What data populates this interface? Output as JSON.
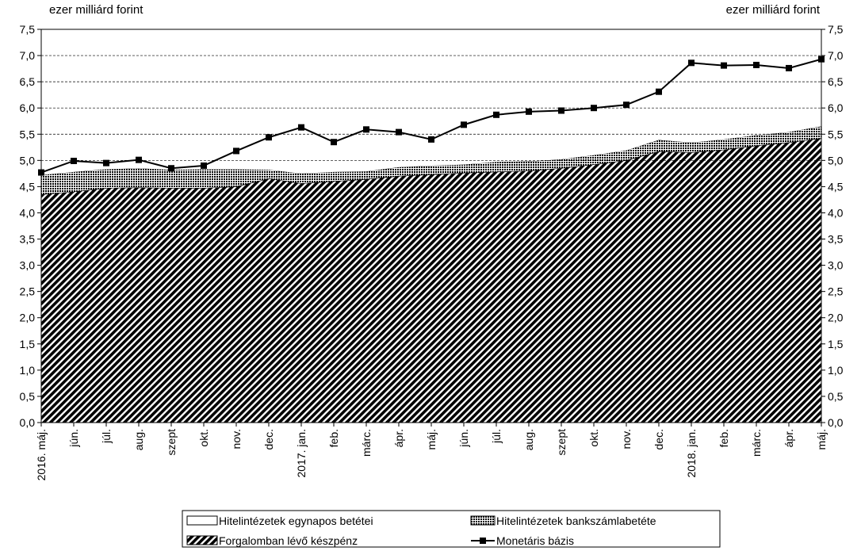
{
  "chart_data": {
    "type": "area",
    "y_unit_left": "ezer milliárd forint",
    "y_unit_right": "ezer milliárd forint",
    "ylim": [
      0,
      7.5
    ],
    "y_ticks": [
      "0,0",
      "0,5",
      "1,0",
      "1,5",
      "2,0",
      "2,5",
      "3,0",
      "3,5",
      "4,0",
      "4,5",
      "5,0",
      "5,5",
      "6,0",
      "6,5",
      "7,0",
      "7,5"
    ],
    "y_tick_values": [
      0,
      0.5,
      1,
      1.5,
      2,
      2.5,
      3,
      3.5,
      4,
      4.5,
      5,
      5.5,
      6,
      6.5,
      7,
      7.5
    ],
    "gridlines": [
      5.0,
      5.5,
      6.0,
      6.5,
      7.0
    ],
    "categories": [
      "2016. máj.",
      "jún.",
      "júl.",
      "aug.",
      "szept",
      "okt.",
      "nov.",
      "dec.",
      "2017. jan.",
      "feb.",
      "márc.",
      "ápr.",
      "máj.",
      "jún.",
      "júl.",
      "aug.",
      "szept",
      "okt.",
      "nov.",
      "dec.",
      "2018. jan.",
      "feb.",
      "márc.",
      "ápr.",
      "máj."
    ],
    "series": [
      {
        "name": "Forgalomban lévő készpénz",
        "type": "area",
        "values": [
          4.35,
          4.4,
          4.47,
          4.48,
          4.47,
          4.47,
          4.5,
          4.65,
          4.56,
          4.6,
          4.64,
          4.7,
          4.73,
          4.76,
          4.78,
          4.8,
          4.85,
          4.92,
          5.0,
          5.17,
          5.15,
          5.2,
          5.28,
          5.34,
          5.42
        ]
      },
      {
        "name": "Hitelintézetek bankszámlabetéte",
        "type": "area",
        "values": [
          0.37,
          0.38,
          0.36,
          0.37,
          0.35,
          0.36,
          0.33,
          0.17,
          0.19,
          0.18,
          0.15,
          0.17,
          0.17,
          0.16,
          0.19,
          0.18,
          0.17,
          0.18,
          0.19,
          0.22,
          0.19,
          0.2,
          0.2,
          0.2,
          0.23
        ]
      },
      {
        "name": "Hitelintézetek egynapos betétei",
        "type": "area",
        "values": [
          0.05,
          0.21,
          0.12,
          0.16,
          0.03,
          0.07,
          0.35,
          0.62,
          0.88,
          0.57,
          0.8,
          0.67,
          0.5,
          0.76,
          0.9,
          0.95,
          0.93,
          0.9,
          0.87,
          0.92,
          1.52,
          1.41,
          1.34,
          1.22,
          1.28
        ]
      },
      {
        "name": "Monetáris bázis",
        "type": "line",
        "values": [
          4.77,
          4.99,
          4.95,
          5.01,
          4.85,
          4.9,
          5.18,
          5.44,
          5.63,
          5.35,
          5.59,
          5.54,
          5.4,
          5.68,
          5.87,
          5.93,
          5.95,
          6.0,
          6.06,
          6.31,
          6.86,
          6.81,
          6.82,
          6.76,
          6.93
        ]
      }
    ],
    "legend": {
      "placement": "bottom",
      "items": [
        {
          "label": "Hitelintézetek egynapos betétei"
        },
        {
          "label": "Hitelintézetek bankszámlabetéte"
        },
        {
          "label": "Forgalomban lévő készpénz"
        },
        {
          "label": "Monetáris bázis"
        }
      ]
    }
  }
}
